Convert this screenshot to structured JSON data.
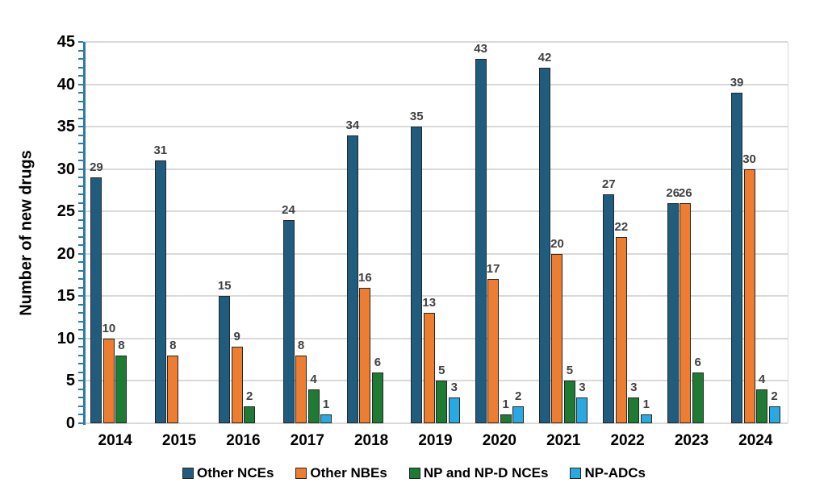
{
  "chart_data": {
    "type": "bar",
    "title": "",
    "xlabel": "",
    "ylabel": "Number of new drugs",
    "ylim": [
      0,
      45
    ],
    "y_major_step": 5,
    "y_minor_step": 1,
    "grid": "horizontal",
    "legend_position": "bottom",
    "zero_values_hidden": true,
    "categories": [
      "2014",
      "2015",
      "2016",
      "2017",
      "2018",
      "2019",
      "2020",
      "2021",
      "2022",
      "2023",
      "2024"
    ],
    "series": [
      {
        "name": "Other NCEs",
        "color": "#1f5c7e",
        "values": [
          29,
          31,
          15,
          24,
          34,
          35,
          43,
          42,
          27,
          26,
          39
        ]
      },
      {
        "name": "Other NBEs",
        "color": "#ed7d31",
        "values": [
          10,
          8,
          9,
          8,
          16,
          13,
          17,
          20,
          22,
          26,
          30
        ]
      },
      {
        "name": "NP and NP-D NCEs",
        "color": "#1e7b34",
        "values": [
          8,
          0,
          2,
          4,
          6,
          5,
          1,
          5,
          3,
          6,
          4
        ]
      },
      {
        "name": "NP-ADCs",
        "color": "#29a9e1",
        "values": [
          0,
          0,
          0,
          1,
          0,
          3,
          2,
          3,
          1,
          0,
          2
        ]
      }
    ],
    "y_tick_labels": [
      "0",
      "5",
      "10",
      "15",
      "20",
      "25",
      "30",
      "35",
      "40",
      "45"
    ]
  },
  "colors": {
    "axis_line": "#2f7aa6",
    "gridline": "#d9d9d9",
    "bar_outline": "#262626",
    "data_label": "#404040",
    "text": "#000000",
    "background": "#ffffff"
  }
}
